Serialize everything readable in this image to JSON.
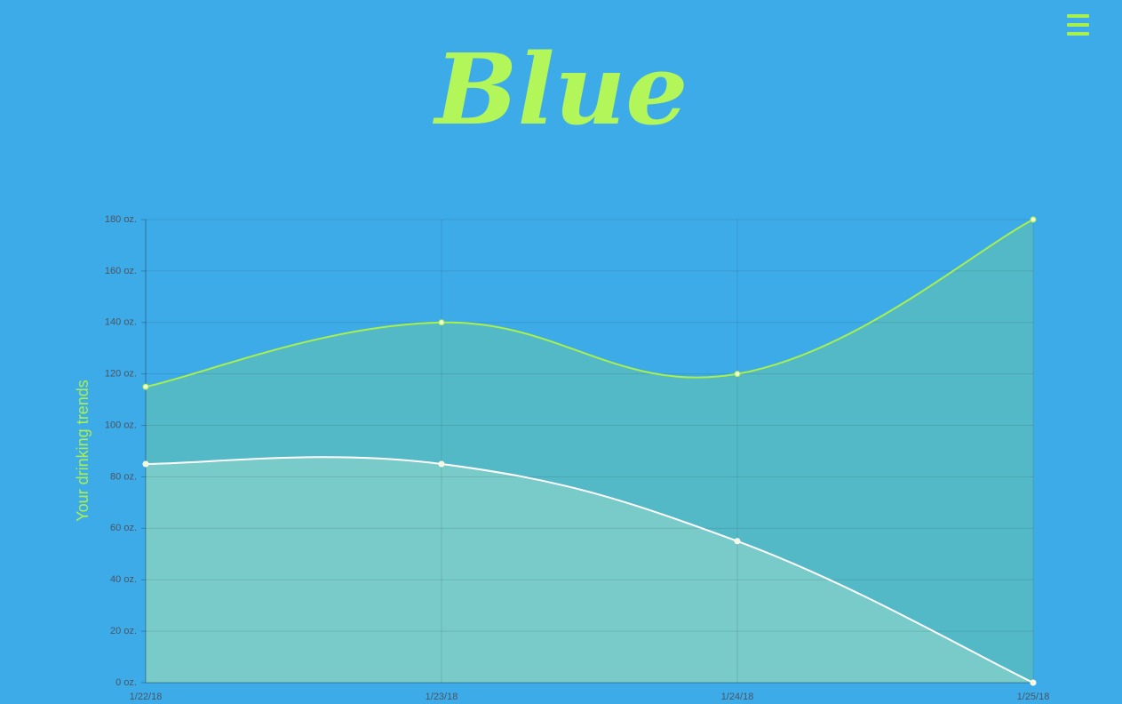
{
  "header": {
    "title": "Blue"
  },
  "chart_data": {
    "type": "area",
    "y_label": "Your drinking trends",
    "categories": [
      "1/22/18",
      "1/23/18",
      "1/24/18",
      "1/25/18"
    ],
    "series": [
      {
        "color": "#a8f04c",
        "fill": "#54b9c6",
        "values": [
          115,
          140,
          120,
          180
        ]
      },
      {
        "color": "#ffffff",
        "fill": "#78cbc9",
        "values": [
          85,
          85,
          55,
          0
        ]
      }
    ],
    "ylim": [
      0,
      180
    ],
    "yticks": [
      {
        "value": 0,
        "label": "0 oz."
      },
      {
        "value": 20,
        "label": "20 oz."
      },
      {
        "value": 40,
        "label": "40 oz."
      },
      {
        "value": 60,
        "label": "60 oz."
      },
      {
        "value": 80,
        "label": "80 oz."
      },
      {
        "value": 100,
        "label": "100 oz."
      },
      {
        "value": 120,
        "label": "120 oz."
      },
      {
        "value": 140,
        "label": "140 oz."
      },
      {
        "value": 160,
        "label": "160 oz."
      },
      {
        "value": 180,
        "label": "180 oz."
      }
    ],
    "grid": true
  }
}
